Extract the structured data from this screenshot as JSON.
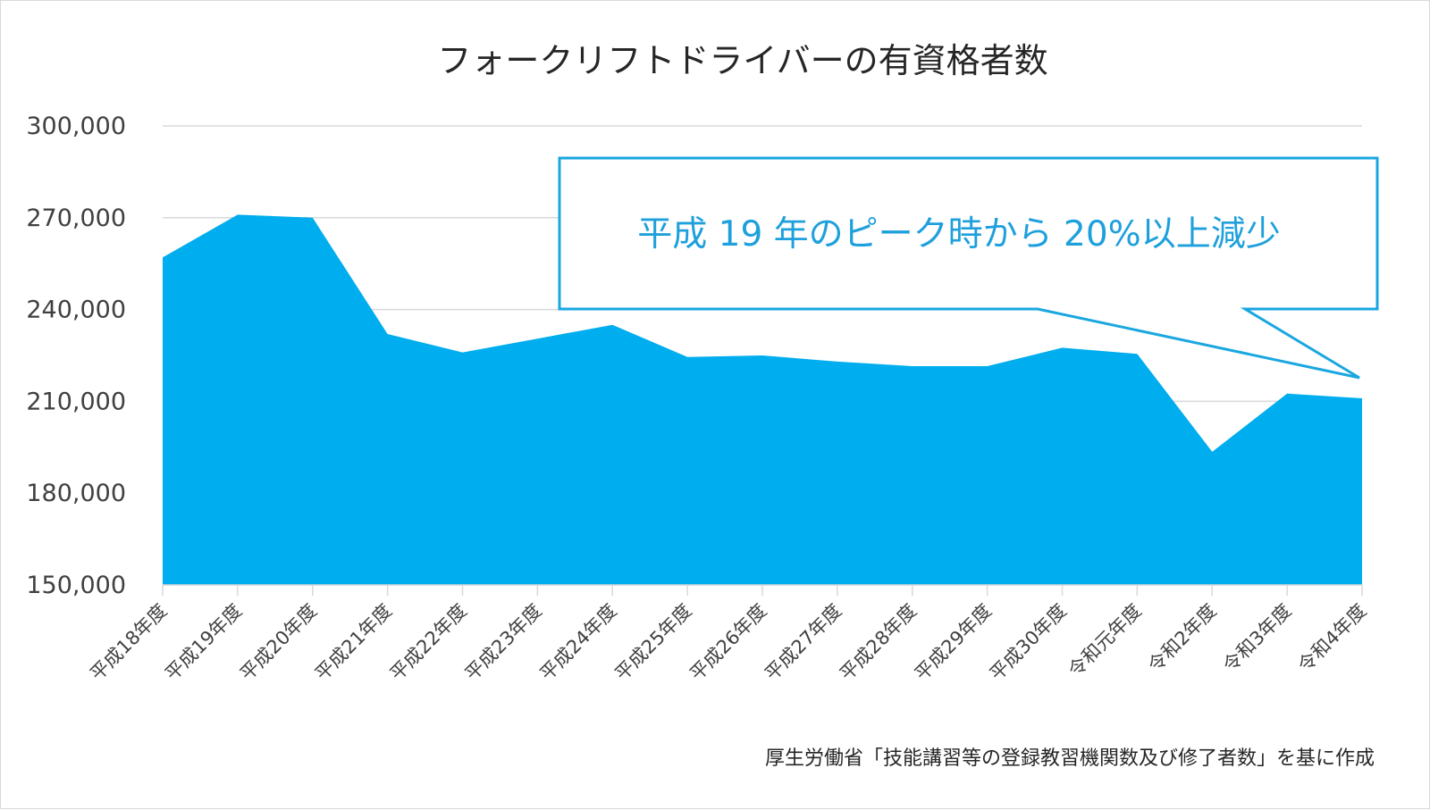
{
  "chart_data": {
    "type": "area",
    "title": "フォークリフトドライバーの有資格者数",
    "xlabel": "",
    "ylabel": "",
    "ylim": [
      150000,
      300000
    ],
    "yticks": [
      150000,
      180000,
      210000,
      240000,
      270000,
      300000
    ],
    "ytick_labels": [
      "150,000",
      "180,000",
      "210,000",
      "240,000",
      "270,000",
      "300,000"
    ],
    "grid": true,
    "categories": [
      "平成18年度",
      "平成19年度",
      "平成20年度",
      "平成21年度",
      "平成22年度",
      "平成23年度",
      "平成24年度",
      "平成25年度",
      "平成26年度",
      "平成27年度",
      "平成28年度",
      "平成29年度",
      "平成30年度",
      "令和元年度",
      "令和2年度",
      "令和3年度",
      "令和4年度"
    ],
    "series": [
      {
        "name": "有資格者数",
        "values": [
          257000,
          271000,
          270000,
          232000,
          226000,
          230500,
          235000,
          224500,
          225000,
          223000,
          221500,
          221500,
          227500,
          225500,
          193500,
          212500,
          211000
        ],
        "color": "#00adee"
      }
    ],
    "annotation": "平成 19 年のピーク時から 20%以上減少",
    "source_note": "厚生労働省「技能講習等の登録教習機関数及び修了者数」を基に作成"
  },
  "colors": {
    "area": "#00adee",
    "callout_border": "#1aa7e0",
    "callout_text": "#1ea0dc",
    "gridline": "#d9d9d9"
  }
}
